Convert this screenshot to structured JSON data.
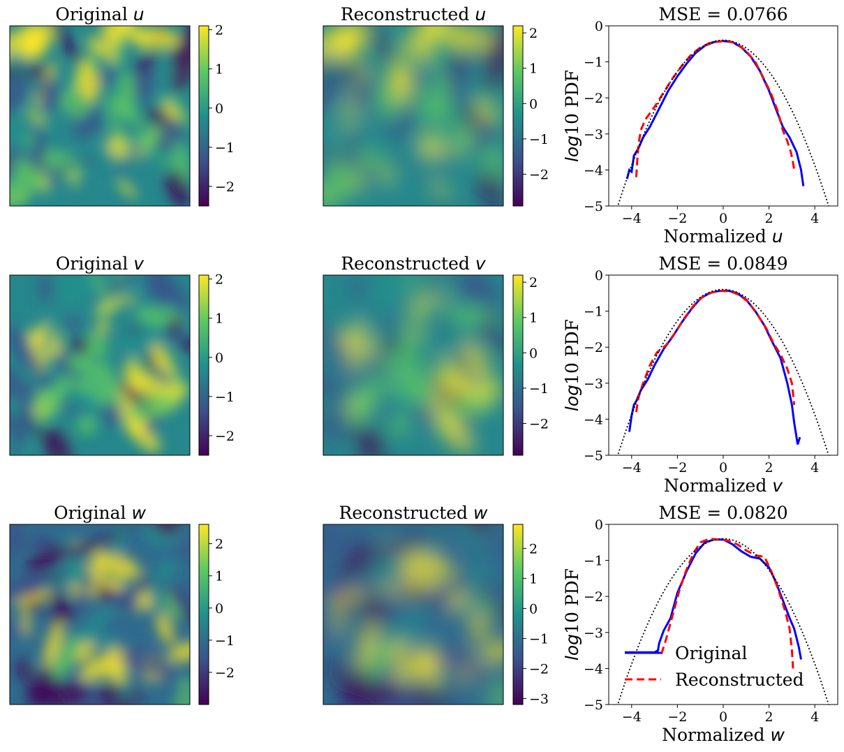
{
  "figure": {
    "rows": [
      {
        "variable": "u",
        "original": {
          "title": "Original",
          "var": "u",
          "colorbar": {
            "min": -2.5,
            "max": 2.1,
            "ticks": [
              2,
              1,
              0,
              -1,
              -2
            ],
            "tick_labels": [
              "2",
              "1",
              "0",
              "−1",
              "−2"
            ]
          }
        },
        "reconstructed": {
          "title": "Reconstructed",
          "var": "u",
          "colorbar": {
            "min": -2.9,
            "max": 2.2,
            "ticks": [
              2,
              1,
              0,
              -1,
              -2
            ],
            "tick_labels": [
              "2",
              "1",
              "0",
              "−1",
              "−2"
            ]
          }
        }
      },
      {
        "variable": "v",
        "original": {
          "title": "Original",
          "var": "v",
          "colorbar": {
            "min": -2.5,
            "max": 2.1,
            "ticks": [
              2,
              1,
              0,
              -1,
              -2
            ],
            "tick_labels": [
              "2",
              "1",
              "0",
              "−1",
              "−2"
            ]
          }
        },
        "reconstructed": {
          "title": "Reconstructed",
          "var": "v",
          "colorbar": {
            "min": -2.9,
            "max": 2.2,
            "ticks": [
              2,
              1,
              0,
              -1,
              -2
            ],
            "tick_labels": [
              "2",
              "1",
              "0",
              "−1",
              "−2"
            ]
          }
        }
      },
      {
        "variable": "w",
        "original": {
          "title": "Original",
          "var": "w",
          "colorbar": {
            "min": -3.0,
            "max": 2.6,
            "ticks": [
              2,
              1,
              0,
              -1,
              -2
            ],
            "tick_labels": [
              "2",
              "1",
              "0",
              "−1",
              "−2"
            ]
          }
        },
        "reconstructed": {
          "title": "Reconstructed",
          "var": "w",
          "colorbar": {
            "min": -3.2,
            "max": 2.8,
            "ticks": [
              2,
              1,
              0,
              -1,
              -2,
              -3
            ],
            "tick_labels": [
              "2",
              "1",
              "0",
              "−1",
              "−2",
              "−3"
            ]
          }
        }
      }
    ]
  },
  "colors": {
    "original_line": "#0000ff",
    "reconstructed_line": "#ff0000",
    "gaussian_line": "#000000",
    "viridis": [
      "#440154",
      "#3b528b",
      "#21918c",
      "#5ec962",
      "#fde725"
    ]
  },
  "legend": {
    "original": "Original",
    "reconstructed": "Reconstructed"
  },
  "chart_data": [
    {
      "type": "line",
      "title": "MSE = 0.0766",
      "xlabel": "Normalized",
      "xlabel_var": "u",
      "ylabel": "log10 PDF",
      "ylabel_italic": "log",
      "ylabel_rest": "10 PDF",
      "xlim": [
        -5,
        5
      ],
      "ylim": [
        -5,
        0
      ],
      "xticks": [
        -4,
        -2,
        0,
        2,
        4
      ],
      "xtick_labels": [
        "−4",
        "−2",
        "0",
        "2",
        "4"
      ],
      "yticks": [
        0,
        -1,
        -2,
        -3,
        -4,
        -5
      ],
      "ytick_labels": [
        "0",
        "−1",
        "−2",
        "−3",
        "−4",
        "−5"
      ],
      "legend": false,
      "series": [
        {
          "name": "Original",
          "style": "solid",
          "x": [
            -4.2,
            -4.1,
            -4.0,
            -3.9,
            -3.8,
            -3.7,
            -3.5,
            -3.2,
            -2.8,
            -2.4,
            -2.0,
            -1.6,
            -1.2,
            -0.8,
            -0.4,
            0.0,
            0.4,
            0.8,
            1.2,
            1.6,
            2.0,
            2.3,
            2.6,
            2.9,
            3.2,
            3.4,
            3.5
          ],
          "y": [
            -4.25,
            -4.0,
            -4.05,
            -3.6,
            -3.5,
            -3.4,
            -3.1,
            -2.8,
            -2.3,
            -1.8,
            -1.4,
            -1.05,
            -0.75,
            -0.55,
            -0.45,
            -0.42,
            -0.45,
            -0.6,
            -0.85,
            -1.25,
            -1.8,
            -2.3,
            -2.8,
            -3.1,
            -3.5,
            -4.0,
            -4.45
          ]
        },
        {
          "name": "Reconstructed",
          "style": "dashed",
          "x": [
            -3.8,
            -3.75,
            -3.7,
            -3.6,
            -3.4,
            -3.0,
            -2.6,
            -2.2,
            -1.8,
            -1.4,
            -1.0,
            -0.6,
            -0.2,
            0.2,
            0.6,
            1.0,
            1.4,
            1.8,
            2.1,
            2.4,
            2.6,
            2.8,
            2.95,
            3.05,
            3.1
          ],
          "y": [
            -4.2,
            -3.7,
            -3.3,
            -2.9,
            -2.6,
            -2.25,
            -1.85,
            -1.45,
            -1.1,
            -0.8,
            -0.6,
            -0.48,
            -0.43,
            -0.42,
            -0.5,
            -0.7,
            -1.0,
            -1.5,
            -1.9,
            -2.4,
            -2.9,
            -3.2,
            -3.5,
            -3.8,
            -4.0
          ]
        },
        {
          "name": "Gaussian",
          "style": "dotted",
          "gaussian": true
        }
      ]
    },
    {
      "type": "line",
      "title": "MSE = 0.0849",
      "xlabel": "Normalized",
      "xlabel_var": "v",
      "ylabel": "log10 PDF",
      "ylabel_italic": "log",
      "ylabel_rest": "10 PDF",
      "xlim": [
        -5,
        5
      ],
      "ylim": [
        -5,
        0
      ],
      "xticks": [
        -4,
        -2,
        0,
        2,
        4
      ],
      "xtick_labels": [
        "−4",
        "−2",
        "0",
        "2",
        "4"
      ],
      "yticks": [
        0,
        -1,
        -2,
        -3,
        -4,
        -5
      ],
      "ytick_labels": [
        "0",
        "−1",
        "−2",
        "−3",
        "−4",
        "−5"
      ],
      "legend": false,
      "series": [
        {
          "name": "Original",
          "style": "solid",
          "x": [
            -4.1,
            -4.0,
            -3.9,
            -3.8,
            -3.6,
            -3.3,
            -3.0,
            -2.6,
            -2.2,
            -1.8,
            -1.4,
            -1.0,
            -0.6,
            -0.2,
            0.2,
            0.6,
            1.0,
            1.4,
            1.8,
            2.1,
            2.5,
            2.8,
            3.0,
            3.1,
            3.2,
            3.25,
            3.35
          ],
          "y": [
            -4.35,
            -3.9,
            -3.6,
            -3.5,
            -3.2,
            -2.9,
            -2.5,
            -2.05,
            -1.7,
            -1.3,
            -0.95,
            -0.65,
            -0.5,
            -0.44,
            -0.43,
            -0.5,
            -0.68,
            -1.0,
            -1.4,
            -1.8,
            -2.3,
            -3.0,
            -3.6,
            -4.1,
            -4.5,
            -4.7,
            -4.5
          ]
        },
        {
          "name": "Reconstructed",
          "style": "dashed",
          "x": [
            -3.8,
            -3.7,
            -3.5,
            -3.2,
            -2.9,
            -2.5,
            -2.1,
            -1.7,
            -1.3,
            -0.9,
            -0.5,
            -0.1,
            0.3,
            0.7,
            1.1,
            1.5,
            1.9,
            2.2,
            2.5,
            2.8,
            3.0,
            3.1
          ],
          "y": [
            -3.8,
            -3.4,
            -3.0,
            -2.5,
            -2.15,
            -1.95,
            -1.6,
            -1.2,
            -0.85,
            -0.6,
            -0.48,
            -0.44,
            -0.45,
            -0.55,
            -0.75,
            -1.1,
            -1.5,
            -1.9,
            -2.2,
            -2.6,
            -3.0,
            -3.6
          ]
        },
        {
          "name": "Gaussian",
          "style": "dotted",
          "gaussian": true
        }
      ]
    },
    {
      "type": "line",
      "title": "MSE = 0.0820",
      "xlabel": "Normalized",
      "xlabel_var": "w",
      "ylabel": "log10 PDF",
      "ylabel_italic": "log",
      "ylabel_rest": "10 PDF",
      "xlim": [
        -5,
        5
      ],
      "ylim": [
        -5,
        0
      ],
      "xticks": [
        -4,
        -2,
        0,
        2,
        4
      ],
      "xtick_labels": [
        "−4",
        "−2",
        "0",
        "2",
        "4"
      ],
      "yticks": [
        0,
        -1,
        -2,
        -3,
        -4,
        -5
      ],
      "ytick_labels": [
        "0",
        "−1",
        "−2",
        "−3",
        "−4",
        "−5"
      ],
      "legend": true,
      "legend_loc": "lower left",
      "series": [
        {
          "name": "Original",
          "style": "solid",
          "x": [
            -4.3,
            -3.0,
            -2.85,
            -2.8,
            -2.6,
            -2.3,
            -2.0,
            -1.6,
            -1.2,
            -0.8,
            -0.4,
            0.0,
            0.4,
            0.8,
            1.2,
            1.6,
            2.0,
            2.3,
            2.6,
            2.9,
            3.1,
            3.3,
            3.4
          ],
          "y": [
            -3.55,
            -3.55,
            -3.5,
            -3.3,
            -2.95,
            -2.6,
            -1.9,
            -1.3,
            -0.8,
            -0.5,
            -0.42,
            -0.42,
            -0.55,
            -0.75,
            -0.9,
            -0.95,
            -1.2,
            -1.6,
            -2.1,
            -2.6,
            -2.9,
            -3.4,
            -3.75
          ]
        },
        {
          "name": "Reconstructed",
          "style": "dashed",
          "x": [
            -2.7,
            -2.5,
            -2.2,
            -1.9,
            -1.6,
            -1.3,
            -1.0,
            -0.6,
            -0.2,
            0.2,
            0.6,
            1.0,
            1.4,
            1.8,
            2.1,
            2.4,
            2.7,
            2.9,
            3.0,
            3.05
          ],
          "y": [
            -3.6,
            -3.2,
            -2.5,
            -1.8,
            -1.25,
            -0.8,
            -0.5,
            -0.4,
            -0.42,
            -0.45,
            -0.55,
            -0.72,
            -0.86,
            -0.9,
            -1.3,
            -1.8,
            -2.4,
            -2.9,
            -3.5,
            -4.0
          ]
        },
        {
          "name": "Gaussian",
          "style": "dotted",
          "gaussian": true
        }
      ]
    }
  ]
}
